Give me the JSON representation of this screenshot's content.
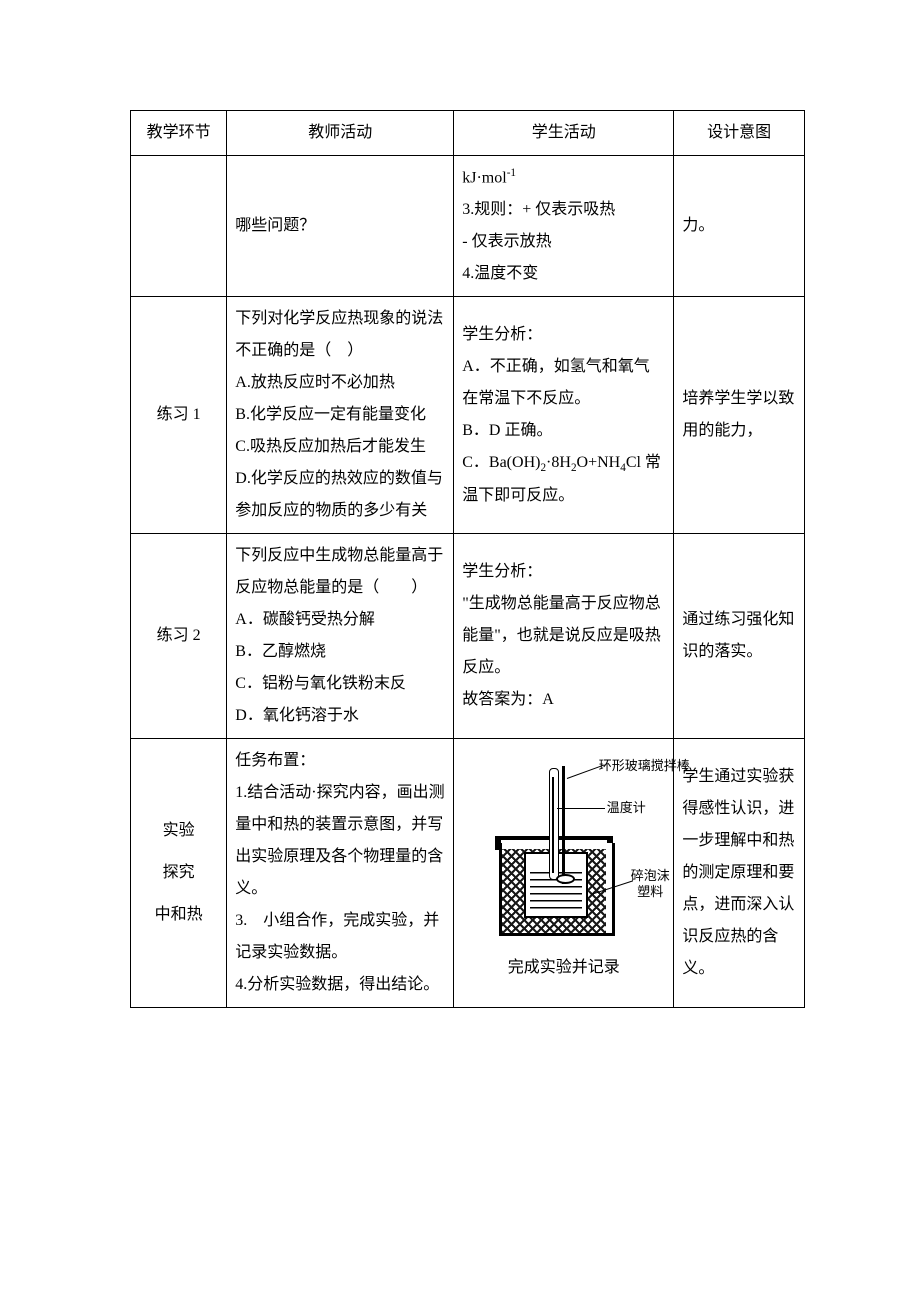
{
  "header": {
    "c1": "教学环节",
    "c2": "教师活动",
    "c3": "学生活动",
    "c4": "设计意图"
  },
  "rows": [
    {
      "stage": "",
      "teacher": "哪些问题？",
      "student_html": "kJ·mol<sup>-1</sup><br>3.规则：+ 仅表示吸热<br>- 仅表示放热<br>4.温度不变",
      "intent": "力。"
    },
    {
      "stage": "练习 1",
      "teacher_html": "下列对化学反应热现象的说法不正确的是（　）<br>A.放热反应时不必加热<br>B.化学反应一定有能量变化<br>C.吸热反应加热后才能发生<br>D.化学反应的热效应的数值与参加反应的物质的多少有关",
      "student_html": "学生分析：<br>A．不正确，如氢气和氧气在常温下不反应。<br>B．D 正确。<br>C．Ba(OH)<sub>2</sub>·8H<sub>2</sub>O+NH<sub>4</sub>Cl 常温下即可反应。",
      "intent": "培养学生学以致用的能力，"
    },
    {
      "stage": "练习 2",
      "teacher_html": "下列反应中生成物总能量高于反应物总能量的是（　　）<br>A．碳酸钙受热分解<br>B．乙醇燃烧<br>C．铝粉与氧化铁粉末反<br>D．氧化钙溶于水",
      "student_html": "学生分析：<br>\"生成物总能量高于反应物总能量\"，也就是说反应是吸热反应。<br>故答案为：A",
      "intent": "通过练习强化知识的落实。"
    },
    {
      "stage_lines": [
        "实验",
        "探究",
        "中和热"
      ],
      "teacher_html": "任务布置：<br>1.结合活动·探究内容，画出测量中和热的装置示意图，并写出实验原理及各个物理量的含义。<br>3.　小组合作，完成实验，并记录实验数据。<br>4.分析实验数据，得出结论。",
      "diagram": {
        "label1": "环形玻璃搅拌棒",
        "label2": "温度计",
        "label3": "碎泡沫\n塑料",
        "caption": "完成实验并记录"
      },
      "intent": "学生通过实验获得感性认识，进一步理解中和热的测定原理和要点，进而深入认识反应热的含义。"
    }
  ]
}
